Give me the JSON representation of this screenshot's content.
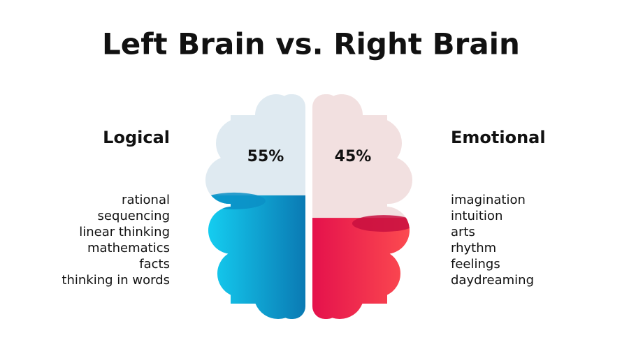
{
  "title": "Left Brain vs. Right Brain",
  "halves": [
    {
      "heading": "Logical",
      "value": 55,
      "value_label": "55%",
      "traits": [
        "rational",
        "sequencing",
        "linear thinking",
        "mathematics",
        "facts",
        "thinking in words"
      ]
    },
    {
      "heading": "Emotional",
      "value": 45,
      "value_label": "45%",
      "traits": [
        "imagination",
        "intuition",
        "arts",
        "rhythm",
        "feelings",
        "daydreaming"
      ]
    }
  ]
}
